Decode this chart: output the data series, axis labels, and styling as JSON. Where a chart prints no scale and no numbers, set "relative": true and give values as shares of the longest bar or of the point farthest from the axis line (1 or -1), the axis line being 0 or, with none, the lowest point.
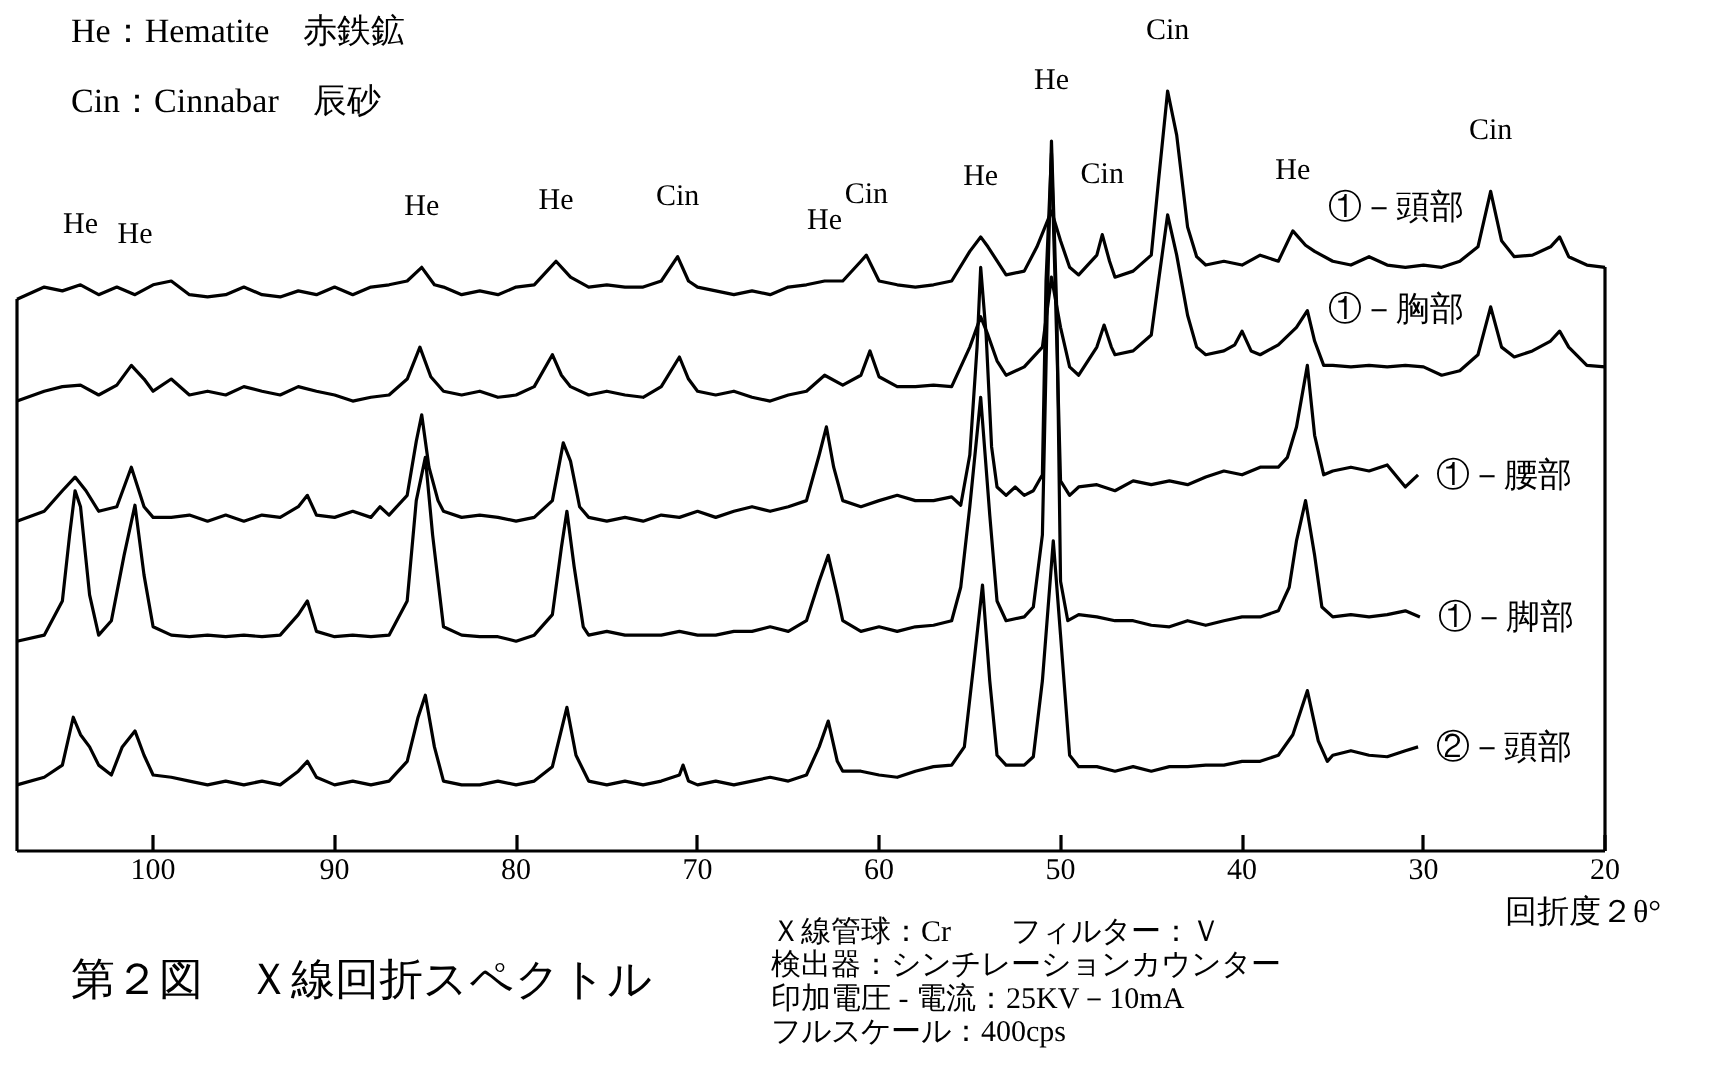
{
  "chart_data": {
    "type": "line",
    "relative": true,
    "title": "第２図　Ｘ線回折スペクトル",
    "xlabel": "回折度２θ°",
    "xlim": [
      107.5,
      20
    ],
    "xticks": [
      100,
      90,
      80,
      70,
      60,
      50,
      40,
      30,
      20
    ],
    "annotations": [
      "He：Hematite　赤鉄鉱",
      "Cin：Cinnabar　辰砂",
      {
        "text": "He",
        "x": 104,
        "y": 0.745
      },
      {
        "text": "He",
        "x": 101,
        "y": 0.732
      },
      {
        "text": "He",
        "x": 85.2,
        "y": 0.768
      },
      {
        "text": "He",
        "x": 77.8,
        "y": 0.776
      },
      {
        "text": "Cin",
        "x": 71.1,
        "y": 0.782
      },
      {
        "text": "He",
        "x": 63,
        "y": 0.75
      },
      {
        "text": "Cin",
        "x": 60.7,
        "y": 0.784
      },
      {
        "text": "He",
        "x": 54.4,
        "y": 0.808
      },
      {
        "text": "He",
        "x": 50.5,
        "y": 0.934
      },
      {
        "text": "Cin",
        "x": 47.7,
        "y": 0.811
      },
      {
        "text": "Cin",
        "x": 44.1,
        "y": 1.0
      },
      {
        "text": "He",
        "x": 37.2,
        "y": 0.816
      },
      {
        "text": "Cin",
        "x": 26.3,
        "y": 0.868
      },
      "Ｘ線管球：Cr　　フィルター：Ｖ",
      "検出器：シンチレーションカウンター",
      "印加電圧 - 電流：25KV－10mA",
      "フルスケール：400cps"
    ],
    "series": [
      {
        "name": "①－頭部",
        "color": "#000000",
        "x": [
          107.5,
          106,
          105,
          104,
          103,
          102,
          101,
          100,
          99,
          98,
          97,
          96,
          95,
          94,
          93,
          92,
          91,
          90,
          89,
          88,
          87,
          86,
          85.2,
          84.5,
          84,
          83,
          82,
          81,
          80,
          79,
          78.3,
          77.8,
          77,
          76,
          75,
          74,
          73,
          72,
          71.1,
          70.5,
          70,
          69,
          68,
          67,
          66,
          65,
          64,
          63,
          62,
          61,
          60.7,
          60,
          59,
          58,
          57,
          56,
          55,
          54.4,
          54,
          53,
          52,
          51.3,
          50.5,
          50,
          49.5,
          49,
          48,
          47.7,
          47.3,
          47,
          46,
          45,
          44.6,
          44.1,
          43.6,
          43,
          42.5,
          42,
          41,
          40,
          39,
          38,
          37.2,
          36.5,
          36,
          35,
          34,
          33,
          32,
          31,
          30,
          29,
          28,
          27,
          26.3,
          25.7,
          25,
          24,
          23,
          22.5,
          22,
          21,
          20
        ],
        "values": [
          0.726,
          0.742,
          0.737,
          0.745,
          0.732,
          0.742,
          0.732,
          0.745,
          0.75,
          0.732,
          0.729,
          0.732,
          0.742,
          0.732,
          0.729,
          0.737,
          0.732,
          0.742,
          0.732,
          0.742,
          0.745,
          0.75,
          0.768,
          0.745,
          0.742,
          0.732,
          0.737,
          0.732,
          0.742,
          0.745,
          0.763,
          0.776,
          0.755,
          0.742,
          0.745,
          0.742,
          0.742,
          0.75,
          0.782,
          0.75,
          0.742,
          0.737,
          0.732,
          0.737,
          0.732,
          0.742,
          0.745,
          0.75,
          0.75,
          0.776,
          0.784,
          0.75,
          0.745,
          0.742,
          0.745,
          0.75,
          0.789,
          0.808,
          0.795,
          0.758,
          0.763,
          0.795,
          0.842,
          0.803,
          0.768,
          0.758,
          0.784,
          0.811,
          0.776,
          0.755,
          0.763,
          0.784,
          0.882,
          1.0,
          0.942,
          0.821,
          0.782,
          0.771,
          0.776,
          0.771,
          0.784,
          0.776,
          0.816,
          0.797,
          0.789,
          0.776,
          0.771,
          0.782,
          0.771,
          0.768,
          0.771,
          0.768,
          0.776,
          0.795,
          0.868,
          0.803,
          0.782,
          0.784,
          0.795,
          0.808,
          0.782,
          0.771,
          0.768
        ]
      },
      {
        "name": "①－胸部",
        "color": "#000000",
        "x": [
          107.5,
          106,
          105,
          104,
          103,
          102,
          101.2,
          100.5,
          100,
          99,
          98,
          97,
          96,
          95,
          94,
          93,
          92,
          91,
          90,
          89,
          88,
          87,
          86,
          85.3,
          84.7,
          84,
          83,
          82,
          81,
          80,
          79,
          78,
          77.5,
          77,
          76,
          75,
          74,
          73,
          72,
          71,
          70.5,
          70,
          69,
          68,
          67,
          66,
          65,
          64,
          63,
          62,
          61,
          60.5,
          60,
          59,
          58,
          57,
          56,
          55,
          54.4,
          54,
          53.5,
          53,
          52,
          51,
          50.5,
          50,
          49.5,
          49,
          48,
          47.6,
          47.2,
          47,
          46,
          45,
          44.6,
          44.1,
          43.6,
          43,
          42.5,
          42,
          41,
          40.4,
          40,
          39.5,
          39,
          38,
          37,
          36.4,
          36,
          35.5,
          35,
          34,
          33,
          32,
          31,
          30,
          29,
          28,
          27,
          26.3,
          25.7,
          25,
          24,
          23,
          22.5,
          22,
          21,
          20
        ],
        "values": [
          0.592,
          0.605,
          0.611,
          0.613,
          0.6,
          0.613,
          0.639,
          0.621,
          0.605,
          0.621,
          0.6,
          0.605,
          0.6,
          0.611,
          0.605,
          0.6,
          0.611,
          0.605,
          0.6,
          0.592,
          0.597,
          0.6,
          0.621,
          0.663,
          0.624,
          0.605,
          0.6,
          0.605,
          0.597,
          0.6,
          0.611,
          0.653,
          0.626,
          0.611,
          0.6,
          0.605,
          0.6,
          0.597,
          0.611,
          0.65,
          0.621,
          0.605,
          0.6,
          0.605,
          0.597,
          0.592,
          0.6,
          0.605,
          0.626,
          0.613,
          0.626,
          0.658,
          0.624,
          0.611,
          0.611,
          0.613,
          0.611,
          0.663,
          0.703,
          0.679,
          0.645,
          0.626,
          0.637,
          0.663,
          0.755,
          0.689,
          0.637,
          0.626,
          0.663,
          0.692,
          0.663,
          0.653,
          0.658,
          0.679,
          0.75,
          0.837,
          0.784,
          0.705,
          0.663,
          0.653,
          0.658,
          0.666,
          0.684,
          0.658,
          0.653,
          0.666,
          0.689,
          0.711,
          0.671,
          0.639,
          0.639,
          0.637,
          0.639,
          0.637,
          0.639,
          0.637,
          0.626,
          0.632,
          0.653,
          0.716,
          0.663,
          0.65,
          0.658,
          0.671,
          0.684,
          0.663,
          0.639,
          0.637
        ]
      },
      {
        "name": "①－腰部",
        "color": "#000000",
        "x": [
          107.5,
          106,
          105,
          104.3,
          103.7,
          103,
          102,
          101.2,
          100.5,
          100,
          99,
          98,
          97,
          96,
          95,
          94,
          93,
          92,
          91.5,
          91,
          90,
          89,
          88,
          87.5,
          87,
          86,
          85.5,
          85.2,
          84.8,
          84.3,
          84,
          83,
          82,
          81,
          80,
          79,
          78,
          77.4,
          77,
          76.5,
          76,
          75,
          74,
          73,
          72,
          71,
          70,
          69,
          68,
          67,
          66,
          65,
          64,
          63.3,
          62.9,
          62.5,
          62,
          61,
          60,
          59,
          58,
          57,
          56,
          55.5,
          55,
          54.6,
          54.4,
          54.1,
          53.8,
          53.5,
          53,
          52.5,
          52,
          51.5,
          51,
          50.8,
          50.5,
          50.2,
          50,
          49.5,
          49,
          48,
          47,
          46,
          45,
          44,
          43,
          42,
          41,
          40,
          39,
          38,
          37.5,
          37,
          36.4,
          36,
          35.5,
          35,
          34,
          33,
          32,
          31,
          30.3
        ],
        "values": [
          0.434,
          0.447,
          0.474,
          0.492,
          0.474,
          0.447,
          0.453,
          0.505,
          0.453,
          0.439,
          0.439,
          0.442,
          0.434,
          0.442,
          0.434,
          0.442,
          0.439,
          0.453,
          0.468,
          0.442,
          0.439,
          0.447,
          0.439,
          0.453,
          0.442,
          0.468,
          0.539,
          0.574,
          0.505,
          0.461,
          0.447,
          0.439,
          0.442,
          0.439,
          0.434,
          0.439,
          0.461,
          0.537,
          0.513,
          0.453,
          0.439,
          0.434,
          0.439,
          0.434,
          0.442,
          0.439,
          0.447,
          0.439,
          0.447,
          0.453,
          0.447,
          0.453,
          0.461,
          0.521,
          0.558,
          0.505,
          0.461,
          0.453,
          0.461,
          0.468,
          0.461,
          0.461,
          0.466,
          0.455,
          0.521,
          0.663,
          0.768,
          0.679,
          0.532,
          0.479,
          0.468,
          0.479,
          0.468,
          0.474,
          0.495,
          0.75,
          0.918,
          0.663,
          0.487,
          0.468,
          0.479,
          0.482,
          0.474,
          0.487,
          0.482,
          0.487,
          0.482,
          0.492,
          0.5,
          0.495,
          0.505,
          0.505,
          0.518,
          0.558,
          0.639,
          0.547,
          0.495,
          0.5,
          0.505,
          0.5,
          0.508,
          0.479,
          0.495
        ]
      },
      {
        "name": "①－脚部",
        "color": "#000000",
        "x": [
          107.5,
          106,
          105,
          104.6,
          104.3,
          104,
          103.5,
          103,
          102.3,
          101.6,
          101,
          100.5,
          100,
          99,
          98,
          97,
          96,
          95,
          94,
          93,
          92,
          91.5,
          91,
          90,
          89,
          88,
          87,
          86,
          85.5,
          85,
          84.6,
          84,
          83,
          82,
          81,
          80,
          79,
          78,
          77.5,
          77.2,
          76.8,
          76.3,
          76,
          75,
          74,
          73,
          72,
          71,
          70,
          69,
          68,
          67,
          66,
          65,
          64,
          63.3,
          62.8,
          62.3,
          62,
          61,
          60,
          59,
          58,
          57,
          56,
          55.5,
          55,
          54.4,
          53.9,
          53.5,
          53,
          52,
          51.5,
          51,
          50.7,
          50.5,
          50.2,
          50,
          49.6,
          49,
          48,
          47,
          46,
          45,
          44,
          43,
          42,
          41,
          40,
          39,
          38,
          37.4,
          37,
          36.5,
          36,
          35.6,
          35,
          34,
          33,
          32,
          31,
          30.2
        ],
        "values": [
          0.276,
          0.284,
          0.329,
          0.416,
          0.474,
          0.453,
          0.337,
          0.284,
          0.303,
          0.389,
          0.455,
          0.363,
          0.295,
          0.284,
          0.282,
          0.284,
          0.282,
          0.284,
          0.282,
          0.284,
          0.311,
          0.329,
          0.289,
          0.282,
          0.284,
          0.282,
          0.284,
          0.329,
          0.461,
          0.518,
          0.416,
          0.295,
          0.284,
          0.282,
          0.282,
          0.276,
          0.284,
          0.311,
          0.4,
          0.447,
          0.374,
          0.295,
          0.284,
          0.289,
          0.284,
          0.284,
          0.284,
          0.289,
          0.284,
          0.284,
          0.289,
          0.289,
          0.295,
          0.289,
          0.303,
          0.355,
          0.389,
          0.337,
          0.303,
          0.289,
          0.295,
          0.289,
          0.295,
          0.297,
          0.303,
          0.347,
          0.453,
          0.597,
          0.442,
          0.329,
          0.303,
          0.308,
          0.321,
          0.416,
          0.75,
          0.934,
          0.705,
          0.355,
          0.303,
          0.311,
          0.308,
          0.303,
          0.303,
          0.297,
          0.295,
          0.303,
          0.297,
          0.303,
          0.308,
          0.308,
          0.316,
          0.347,
          0.408,
          0.461,
          0.389,
          0.321,
          0.308,
          0.311,
          0.308,
          0.311,
          0.316,
          0.308
        ]
      },
      {
        "name": "②－頭部",
        "color": "#000000",
        "x": [
          107.5,
          106,
          105,
          104.4,
          104,
          103.5,
          103,
          102.3,
          101.7,
          101,
          100.5,
          100,
          99,
          98,
          97,
          96,
          95,
          94,
          93,
          92,
          91.5,
          91,
          90,
          89,
          88,
          87,
          86,
          85.4,
          85,
          84.5,
          84,
          83,
          82,
          81,
          80,
          79,
          78,
          77.2,
          76.7,
          76,
          75,
          74,
          73,
          72,
          71,
          70.8,
          70.5,
          70,
          69,
          68,
          67,
          66,
          65,
          64,
          63.3,
          62.8,
          62.3,
          62,
          61,
          60,
          59,
          58,
          57,
          56,
          55.3,
          54.8,
          54.3,
          53.9,
          53.5,
          53,
          52,
          51.5,
          51,
          50.4,
          50,
          49.5,
          49,
          48,
          47,
          46,
          45,
          44,
          43,
          42,
          41,
          40,
          39,
          38,
          37.2,
          36.4,
          35.8,
          35.3,
          35,
          34,
          33,
          32,
          31,
          30.3
        ],
        "values": [
          0.087,
          0.097,
          0.113,
          0.176,
          0.153,
          0.137,
          0.113,
          0.1,
          0.137,
          0.158,
          0.126,
          0.1,
          0.097,
          0.092,
          0.087,
          0.092,
          0.087,
          0.092,
          0.087,
          0.105,
          0.118,
          0.097,
          0.087,
          0.092,
          0.087,
          0.092,
          0.118,
          0.176,
          0.205,
          0.137,
          0.092,
          0.087,
          0.087,
          0.092,
          0.087,
          0.092,
          0.111,
          0.189,
          0.126,
          0.092,
          0.087,
          0.092,
          0.087,
          0.092,
          0.1,
          0.113,
          0.092,
          0.087,
          0.092,
          0.087,
          0.092,
          0.097,
          0.092,
          0.1,
          0.137,
          0.171,
          0.118,
          0.105,
          0.105,
          0.1,
          0.097,
          0.105,
          0.111,
          0.113,
          0.137,
          0.242,
          0.35,
          0.224,
          0.126,
          0.113,
          0.113,
          0.124,
          0.224,
          0.408,
          0.284,
          0.126,
          0.111,
          0.111,
          0.105,
          0.111,
          0.105,
          0.111,
          0.111,
          0.113,
          0.113,
          0.118,
          0.118,
          0.126,
          0.153,
          0.211,
          0.145,
          0.118,
          0.126,
          0.132,
          0.126,
          0.124,
          0.132,
          0.137
        ]
      }
    ]
  }
}
